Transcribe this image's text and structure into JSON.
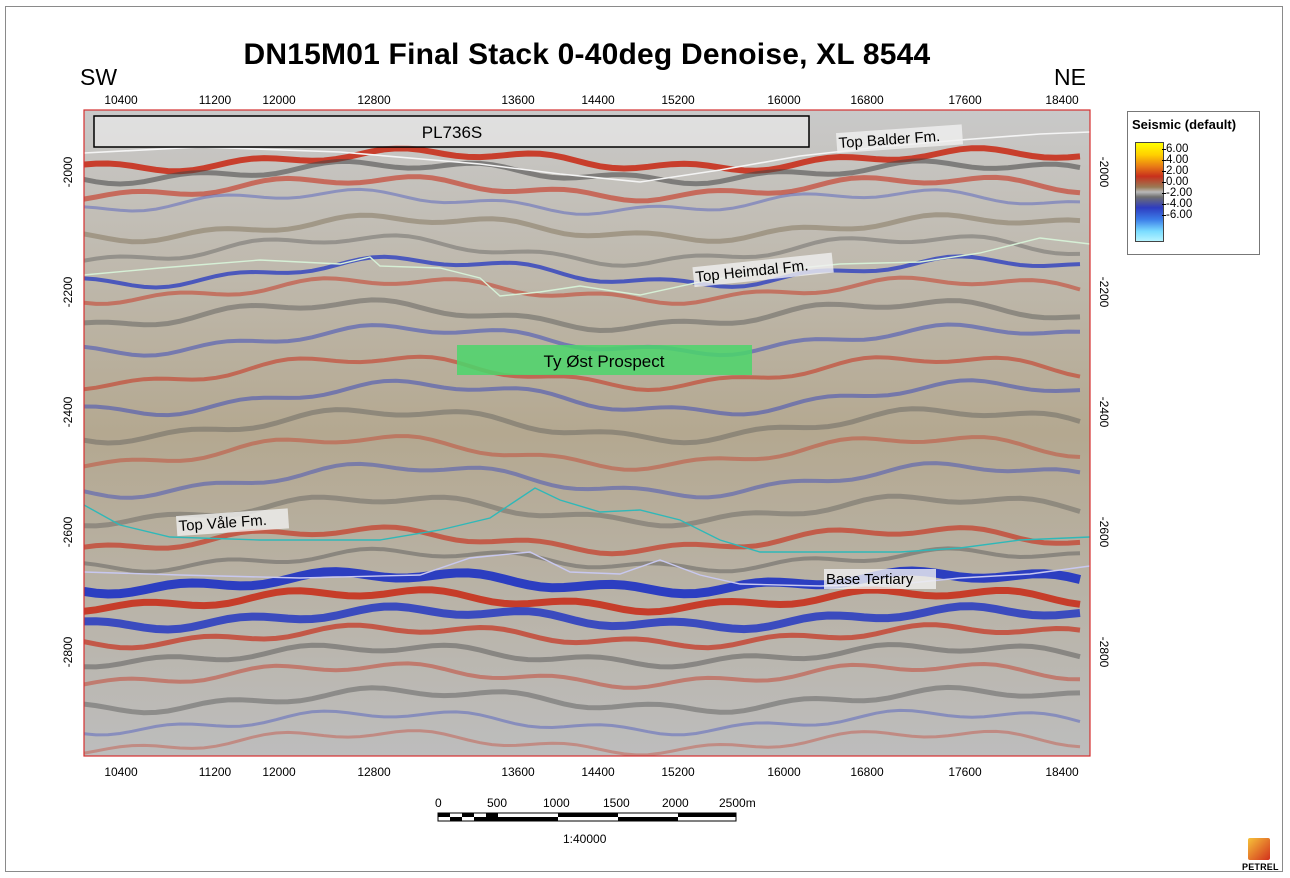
{
  "title": "DN15M01 Final Stack 0-40deg Denoise, XL 8544",
  "directions": {
    "left": "SW",
    "right": "NE"
  },
  "x_axis": {
    "ticks": [
      "10400",
      "11200",
      "12000",
      "12800",
      "13600",
      "14400",
      "15200",
      "16000",
      "16800",
      "17600",
      "18400"
    ]
  },
  "y_axis": {
    "ticks": [
      "-2000",
      "-2200",
      "-2400",
      "-2600",
      "-2800"
    ]
  },
  "annotations": {
    "license": "PL736S",
    "prospect": "Ty Øst Prospect",
    "horizons": {
      "balder": "Top Balder Fm.",
      "heimdal": "Top Heimdal Fm.",
      "vale": "Top Våle Fm.",
      "base_tertiary": "Base Tertiary"
    }
  },
  "legend": {
    "title": "Seismic (default)",
    "ticks": [
      "6.00",
      "4.00",
      "2.00",
      "0.00",
      "-2.00",
      "-4.00",
      "-6.00"
    ]
  },
  "scale_bar": {
    "labels": [
      "0",
      "500",
      "1000",
      "1500",
      "2000",
      "2500m"
    ],
    "ratio": "1:40000"
  },
  "logo": {
    "text": "PETREL"
  },
  "colors": {
    "positive": "#c8301c",
    "negative": "#2438c2",
    "balder_line": "#f4f4f4",
    "heimdal_line": "#d6f0d6",
    "vale_line": "#2fb8b8",
    "base_tertiary_line": "#c8c8f0",
    "prospect_fill": "#4bd66b"
  }
}
